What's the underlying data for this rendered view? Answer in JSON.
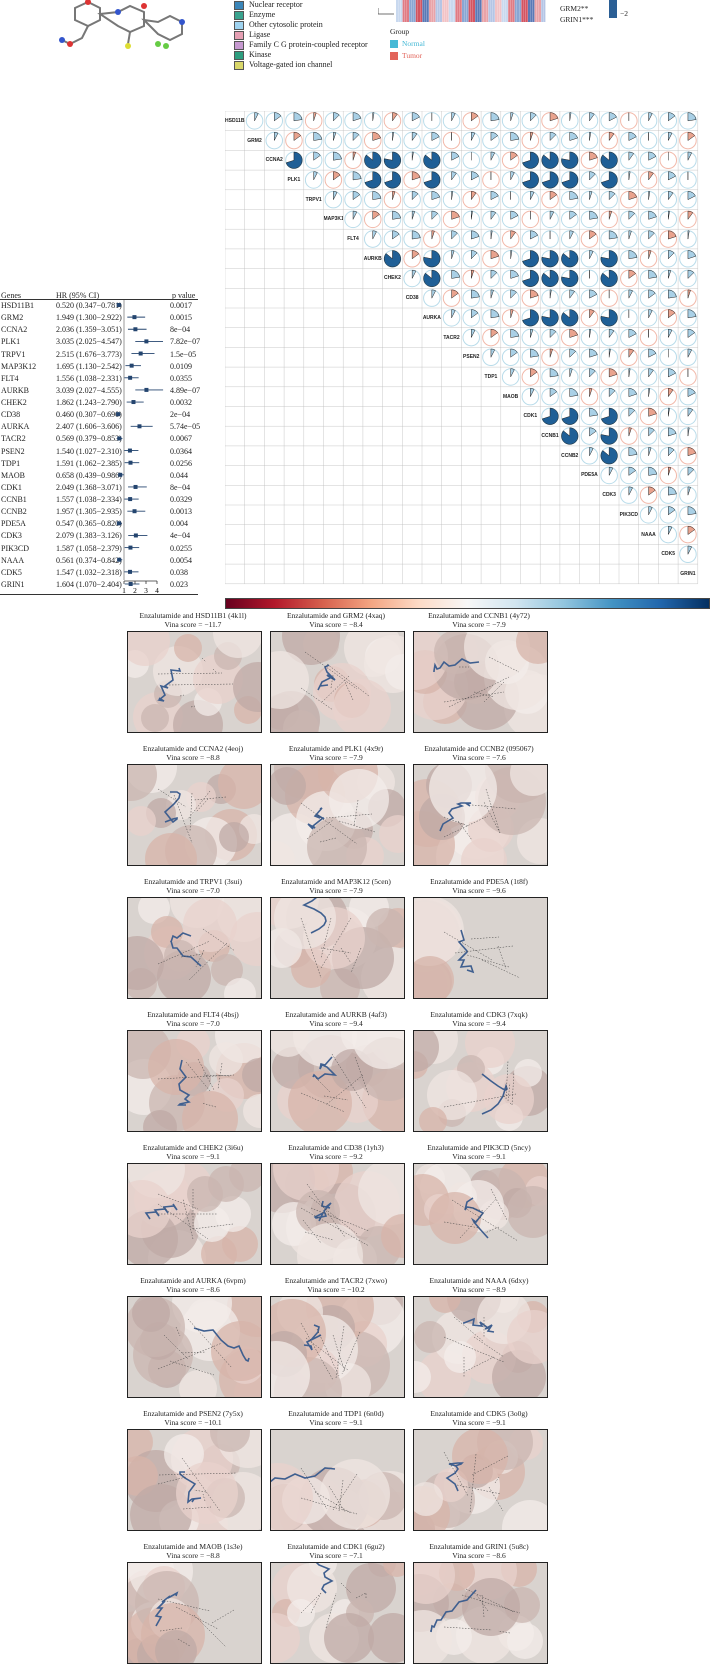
{
  "legend_categories": [
    {
      "label": "Nuclear receptor",
      "color": "#3b86b9"
    },
    {
      "label": "Enzyme",
      "color": "#3aa38f"
    },
    {
      "label": "Other cytosolic protein",
      "color": "#9fd3f0"
    },
    {
      "label": "Ligase",
      "color": "#e6a0b4"
    },
    {
      "label": "Family C G protein-coupled receptor",
      "color": "#c79ad1"
    },
    {
      "label": "Kinase",
      "color": "#2e9e7f"
    },
    {
      "label": "Voltage-gated ion channel",
      "color": "#d9d76a"
    }
  ],
  "heatmap_top": {
    "row_labels": [
      "GRM2**",
      "GRIN1***"
    ],
    "scale_tick": "−2",
    "group_title": "Group",
    "groups": [
      {
        "label": "Normal",
        "color": "#46b9d6"
      },
      {
        "label": "Tumor",
        "color": "#e2645a"
      }
    ]
  },
  "forest_plot": {
    "headers": {
      "gene": "Genes",
      "hr": "HR (95% CI)",
      "p": "p value"
    },
    "axis_ticks": [
      "1",
      "2",
      "3",
      "4"
    ],
    "rows": [
      {
        "gene": "HSD11B1",
        "hr_text": "0.520 (0.347−0.781)",
        "p": "0.0017",
        "hr": 0.52,
        "lo": 0.347,
        "hi": 0.781
      },
      {
        "gene": "GRM2",
        "hr_text": "1.949 (1.300−2.922)",
        "p": "0.0015",
        "hr": 1.949,
        "lo": 1.3,
        "hi": 2.922
      },
      {
        "gene": "CCNA2",
        "hr_text": "2.036 (1.359−3.051)",
        "p": "8e−04",
        "hr": 2.036,
        "lo": 1.359,
        "hi": 3.051
      },
      {
        "gene": "PLK1",
        "hr_text": "3.035 (2.025−4.547)",
        "p": "7.82e−07",
        "hr": 3.035,
        "lo": 2.025,
        "hi": 4.547
      },
      {
        "gene": "TRPV1",
        "hr_text": "2.515 (1.676−3.773)",
        "p": "1.5e−05",
        "hr": 2.515,
        "lo": 1.676,
        "hi": 3.773
      },
      {
        "gene": "MAP3K12",
        "hr_text": "1.695 (1.130−2.542)",
        "p": "0.0109",
        "hr": 1.695,
        "lo": 1.13,
        "hi": 2.542
      },
      {
        "gene": "FLT4",
        "hr_text": "1.556 (1.038−2.331)",
        "p": "0.0355",
        "hr": 1.556,
        "lo": 1.038,
        "hi": 2.331
      },
      {
        "gene": "AURKB",
        "hr_text": "3.039 (2.027−4.555)",
        "p": "4.89e−07",
        "hr": 3.039,
        "lo": 2.027,
        "hi": 4.555
      },
      {
        "gene": "CHEK2",
        "hr_text": "1.862 (1.243−2.790)",
        "p": "0.0032",
        "hr": 1.862,
        "lo": 1.243,
        "hi": 2.79
      },
      {
        "gene": "CD38",
        "hr_text": "0.460 (0.307−0.690)",
        "p": "2e−04",
        "hr": 0.46,
        "lo": 0.307,
        "hi": 0.69
      },
      {
        "gene": "AURKA",
        "hr_text": "2.407 (1.606−3.606)",
        "p": "5.74e−05",
        "hr": 2.407,
        "lo": 1.606,
        "hi": 3.606
      },
      {
        "gene": "TACR2",
        "hr_text": "0.569 (0.379−0.853)",
        "p": "0.0067",
        "hr": 0.569,
        "lo": 0.379,
        "hi": 0.853
      },
      {
        "gene": "PSEN2",
        "hr_text": "1.540 (1.027−2.310)",
        "p": "0.0364",
        "hr": 1.54,
        "lo": 1.027,
        "hi": 2.31
      },
      {
        "gene": "TDP1",
        "hr_text": "1.591 (1.062−2.385)",
        "p": "0.0256",
        "hr": 1.591,
        "lo": 1.062,
        "hi": 2.385
      },
      {
        "gene": "MAOB",
        "hr_text": "0.658 (0.439−0.986)",
        "p": "0.044",
        "hr": 0.658,
        "lo": 0.439,
        "hi": 0.986
      },
      {
        "gene": "CDK1",
        "hr_text": "2.049 (1.368−3.071)",
        "p": "8e−04",
        "hr": 2.049,
        "lo": 1.368,
        "hi": 3.071
      },
      {
        "gene": "CCNB1",
        "hr_text": "1.557 (1.038−2.334)",
        "p": "0.0329",
        "hr": 1.557,
        "lo": 1.038,
        "hi": 2.334
      },
      {
        "gene": "CCNB2",
        "hr_text": "1.957 (1.305−2.935)",
        "p": "0.0013",
        "hr": 1.957,
        "lo": 1.305,
        "hi": 2.935
      },
      {
        "gene": "PDE5A",
        "hr_text": "0.547 (0.365−0.820)",
        "p": "0.004",
        "hr": 0.547,
        "lo": 0.365,
        "hi": 0.82
      },
      {
        "gene": "CDK3",
        "hr_text": "2.079 (1.383−3.126)",
        "p": "4e−04",
        "hr": 2.079,
        "lo": 1.383,
        "hi": 3.126
      },
      {
        "gene": "PIK3CD",
        "hr_text": "1.587 (1.058−2.379)",
        "p": "0.0255",
        "hr": 1.587,
        "lo": 1.058,
        "hi": 2.379
      },
      {
        "gene": "NAAA",
        "hr_text": "0.561 (0.374−0.842)",
        "p": "0.0054",
        "hr": 0.561,
        "lo": 0.374,
        "hi": 0.842
      },
      {
        "gene": "CDK5",
        "hr_text": "1.547 (1.032−2.318)",
        "p": "0.038",
        "hr": 1.547,
        "lo": 1.032,
        "hi": 2.318
      },
      {
        "gene": "GRIN1",
        "hr_text": "1.604 (1.070−2.404)",
        "p": "0.023",
        "hr": 1.604,
        "lo": 1.07,
        "hi": 2.404
      }
    ]
  },
  "correlation_matrix": {
    "genes": [
      "HSD11B1",
      "GRM2",
      "CCNA2",
      "PLK1",
      "TRPV1",
      "MAP3K12",
      "FLT4",
      "AURKB",
      "CHEK2",
      "CD38",
      "AURKA",
      "TACR2",
      "PSEN2",
      "TDP1",
      "MAOB",
      "CDK1",
      "CCNB1",
      "CCNB2",
      "PDE5A",
      "CDK3",
      "PIK3CD",
      "NAAA",
      "CDK5",
      "GRIN1"
    ]
  },
  "docking_panels": [
    {
      "title": "Enzalutamide and HSD11B1 (4k1l)",
      "score": "Vina score = −11.7"
    },
    {
      "title": "Enzalutamide and GRM2 (4xaq)",
      "score": "Vina score = −8.4"
    },
    {
      "title": "Enzalutamide and CCNB1 (4y72)",
      "score": "Vina score = −7.9"
    },
    {
      "title": "Enzalutamide and CCNA2 (4eoj)",
      "score": "Vina score = −8.8"
    },
    {
      "title": "Enzalutamide and PLK1 (4x9r)",
      "score": "Vina score = −7.9"
    },
    {
      "title": "Enzalutamide and CCNB2 (095067)",
      "score": "Vina score = −7.6"
    },
    {
      "title": "Enzalutamide and TRPV1 (3sui)",
      "score": "Vina score = −7.0"
    },
    {
      "title": "Enzalutamide and MAP3K12 (5cen)",
      "score": "Vina score = −7.9"
    },
    {
      "title": "Enzalutamide and PDE5A (1t8f)",
      "score": "Vina score = −9.6"
    },
    {
      "title": "Enzalutamide and FLT4 (4bsj)",
      "score": "Vina score = −7.0"
    },
    {
      "title": "Enzalutamide and AURKB (4af3)",
      "score": "Vina score = −9.4"
    },
    {
      "title": "Enzalutamide and CDK3 (7xqk)",
      "score": "Vina score = −9.4"
    },
    {
      "title": "Enzalutamide and CHEK2 (3i6u)",
      "score": "Vina score = −9.1"
    },
    {
      "title": "Enzalutamide and CD38 (1yh3)",
      "score": "Vina score = −9.2"
    },
    {
      "title": "Enzalutamide and PIK3CD (5ncy)",
      "score": "Vina score = −9.1"
    },
    {
      "title": "Enzalutamide and AURKA (6vpm)",
      "score": "Vina score = −8.6"
    },
    {
      "title": "Enzalutamide and TACR2 (7xwo)",
      "score": "Vina score = −10.2"
    },
    {
      "title": "Enzalutamide and NAAA (6dxy)",
      "score": "Vina score = −8.9"
    },
    {
      "title": "Enzalutamide and PSEN2 (7y5x)",
      "score": "Vina score = −10.1"
    },
    {
      "title": "Enzalutamide and TDP1 (6n0d)",
      "score": "Vina score = −9.1"
    },
    {
      "title": "Enzalutamide and CDK5 (3o0g)",
      "score": "Vina score = −9.1"
    },
    {
      "title": "Enzalutamide and MAOB (1s3e)",
      "score": "Vina score = −8.8"
    },
    {
      "title": "Enzalutamide and CDK1 (6gu2)",
      "score": "Vina score = −7.1"
    },
    {
      "title": "Enzalutamide and GRIN1 (5u8c)",
      "score": "Vina score = −8.6"
    }
  ]
}
